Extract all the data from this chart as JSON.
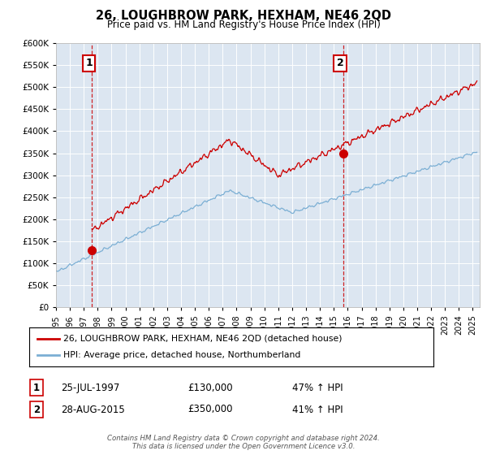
{
  "title": "26, LOUGHBROW PARK, HEXHAM, NE46 2QD",
  "subtitle": "Price paid vs. HM Land Registry's House Price Index (HPI)",
  "property_label": "26, LOUGHBROW PARK, HEXHAM, NE46 2QD (detached house)",
  "hpi_label": "HPI: Average price, detached house, Northumberland",
  "annotation1_date": "25-JUL-1997",
  "annotation1_price": 130000,
  "annotation1_text": "47% ↑ HPI",
  "annotation2_date": "28-AUG-2015",
  "annotation2_price": 350000,
  "annotation2_text": "41% ↑ HPI",
  "sale1_year": 1997.57,
  "sale2_year": 2015.66,
  "ylim_min": 0,
  "ylim_max": 600000,
  "xlim_min": 1995,
  "xlim_max": 2025.5,
  "background_color": "#dce6f1",
  "red_line_color": "#cc0000",
  "blue_line_color": "#7bafd4",
  "grid_color": "#ffffff",
  "footnote": "Contains HM Land Registry data © Crown copyright and database right 2024.\nThis data is licensed under the Open Government Licence v3.0."
}
